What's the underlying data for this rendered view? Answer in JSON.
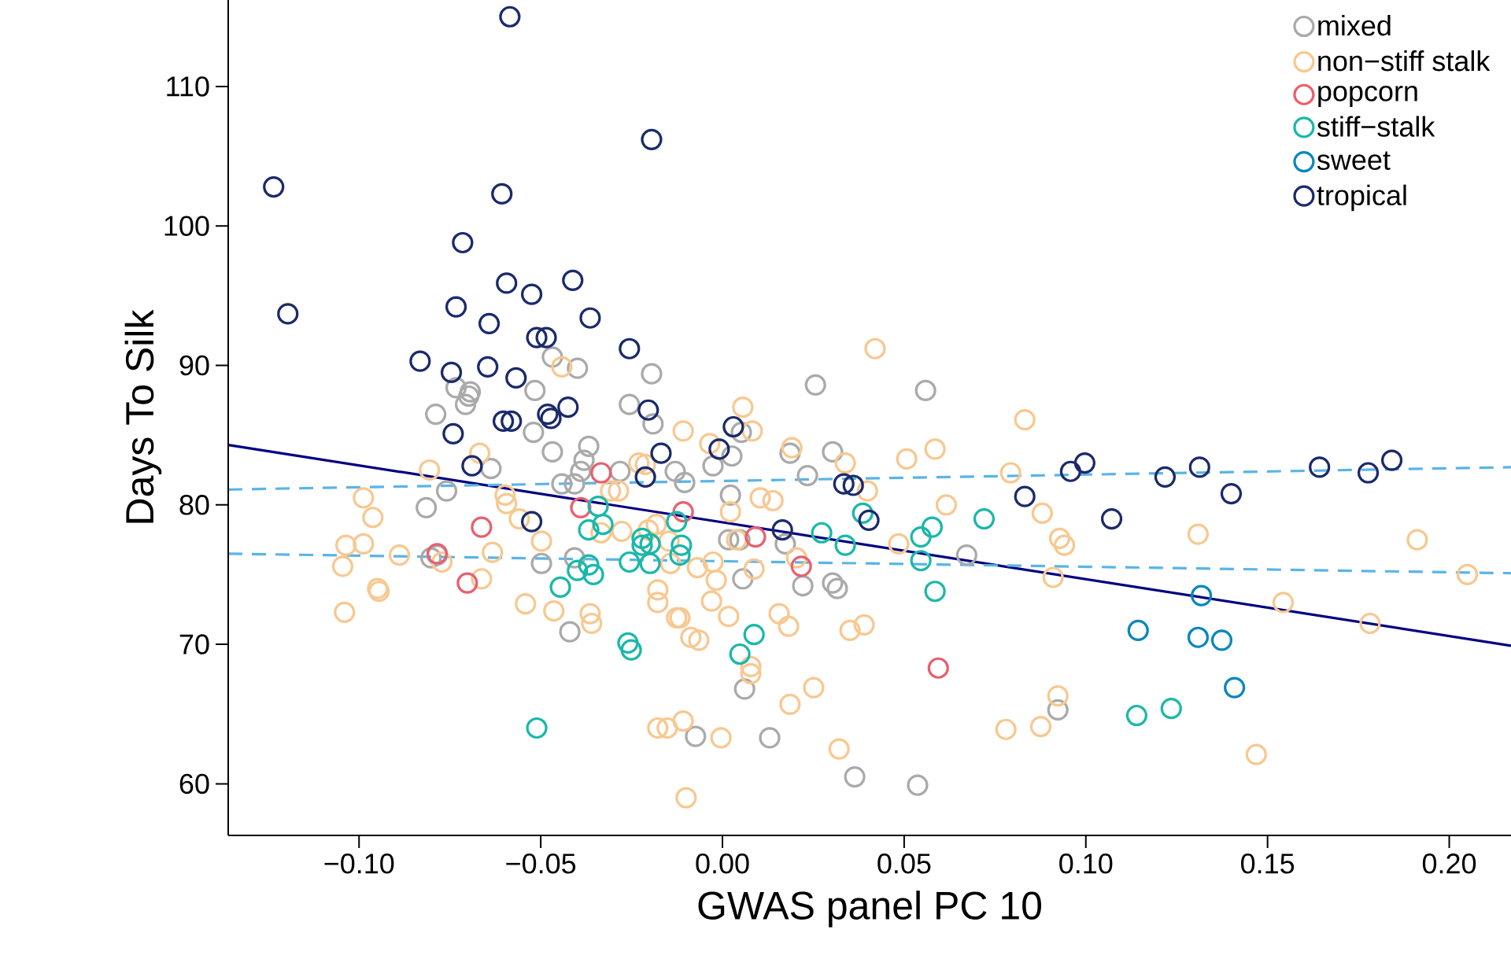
{
  "chart_data": {
    "type": "scatter",
    "xlabel": "GWAS panel PC 10",
    "ylabel": "Days To Silk",
    "xlim": [
      -0.136,
      0.217
    ],
    "ylim": [
      56.3,
      116.2
    ],
    "xticks": [
      {
        "value": -0.1,
        "label": "−0.10"
      },
      {
        "value": -0.05,
        "label": "−0.05"
      },
      {
        "value": 0,
        "label": "0.00"
      },
      {
        "value": 0.05,
        "label": "0.05"
      },
      {
        "value": 0.1,
        "label": "0.10"
      },
      {
        "value": 0.15,
        "label": "0.15"
      },
      {
        "value": 0.2,
        "label": "0.20"
      }
    ],
    "yticks": [
      60,
      70,
      80,
      90,
      100,
      110
    ],
    "grid": false,
    "legend": "top right",
    "marker": "circle",
    "series": [
      {
        "name": "mixed",
        "color": "#aaaaaa",
        "x": [
          -0.0468,
          -0.0399,
          -0.0195,
          -0.0733,
          -0.0694,
          -0.0516,
          -0.0698,
          -0.0707,
          -0.0789,
          -0.052,
          -0.0468,
          -0.0368,
          -0.0381,
          -0.039,
          -0.0637,
          -0.0442,
          -0.0407,
          -0.0282,
          -0.0256,
          -0.0191,
          -0.0759,
          -0.0815,
          -0.0802,
          -0.0785,
          -0.0498,
          -0.0407,
          -0.042,
          0.0256,
          0.0559,
          -0.013,
          -0.0104,
          0.0026,
          -0.0026,
          0.0052,
          0.0186,
          0.0303,
          0.0234,
          0.0022,
          0.0017,
          0.0048,
          0.0173,
          0.0056,
          0.0221,
          0.0303,
          0.0316,
          0.0672,
          0.0061,
          -0.0074,
          0.013,
          0.0364,
          0.0537,
          0.0923
        ],
        "values": [
          90.6,
          89.8,
          89.4,
          88.4,
          88.1,
          88.2,
          87.8,
          87.2,
          86.5,
          85.2,
          83.8,
          84.2,
          83.2,
          82.4,
          82.6,
          81.5,
          81.5,
          82.4,
          87.2,
          85.8,
          81.0,
          79.8,
          76.2,
          76.4,
          75.8,
          76.2,
          70.9,
          88.6,
          88.2,
          82.4,
          81.6,
          83.5,
          82.8,
          85.2,
          83.7,
          83.8,
          82.1,
          80.7,
          77.5,
          77.5,
          77.2,
          74.7,
          74.2,
          74.4,
          74.0,
          76.4,
          66.8,
          63.4,
          63.3,
          60.5,
          59.9,
          65.3
        ]
      },
      {
        "name": "non−stiff stalk",
        "color": "#f8c890",
        "x": [
          -0.0442,
          0.042,
          -0.0668,
          -0.0806,
          -0.0988,
          -0.0962,
          -0.0598,
          -0.0594,
          -0.0559,
          -0.0498,
          -0.1036,
          -0.0988,
          -0.1045,
          -0.0889,
          -0.0633,
          -0.0772,
          -0.0663,
          -0.0949,
          -0.0945,
          -0.104,
          -0.0542,
          -0.0464,
          -0.0364,
          -0.036,
          -0.0308,
          -0.0286,
          -0.023,
          -0.0334,
          -0.0277,
          -0.0204,
          -0.0178,
          -0.0178,
          -0.0178,
          0.0056,
          -0.0108,
          0.0082,
          -0.0035,
          0.0191,
          0.0338,
          0.0399,
          0.0104,
          0.0139,
          0.0022,
          -0.0212,
          -0.0182,
          -0.0147,
          -0.0143,
          -0.0069,
          -0.0026,
          0.0039,
          0.0087,
          -0.0017,
          -0.003,
          0.0017,
          -0.0126,
          -0.0117,
          -0.0087,
          -0.0065,
          0.0156,
          0.0182,
          0.0204,
          0.0507,
          0.0585,
          0.0832,
          0.0616,
          0.0485,
          0.0351,
          0.039,
          0.0078,
          0.0078,
          0.0251,
          0.0186,
          -0.0152,
          -0.0108,
          -0.0004,
          0.0321,
          -0.01,
          0.0793,
          0.088,
          0.0928,
          0.0941,
          0.091,
          0.0923,
          0.078,
          0.0876,
          0.1309,
          0.1912,
          0.205,
          0.1543,
          0.1782,
          0.1469
        ],
        "values": [
          89.9,
          91.2,
          83.7,
          82.5,
          80.5,
          79.1,
          80.7,
          80.1,
          79.0,
          77.4,
          77.1,
          77.2,
          75.6,
          76.4,
          76.6,
          75.9,
          74.7,
          74.0,
          73.8,
          72.3,
          72.9,
          72.4,
          72.2,
          71.5,
          81.0,
          81.0,
          83.0,
          78.0,
          78.1,
          78.2,
          73.9,
          73.0,
          64.0,
          87.0,
          85.3,
          85.3,
          84.4,
          84.1,
          83.0,
          81.0,
          80.5,
          80.3,
          79.5,
          82.9,
          78.6,
          77.4,
          75.8,
          75.5,
          75.9,
          77.5,
          75.4,
          74.6,
          73.1,
          72.0,
          71.9,
          71.9,
          70.5,
          70.3,
          72.2,
          71.3,
          76.2,
          83.3,
          84.0,
          86.1,
          80.0,
          77.2,
          71.0,
          71.4,
          68.4,
          67.9,
          66.9,
          65.7,
          64.0,
          64.5,
          63.3,
          62.5,
          59.0,
          82.3,
          79.4,
          77.6,
          77.1,
          74.8,
          66.3,
          63.9,
          64.1,
          77.9,
          77.5,
          75.0,
          73.0,
          71.5,
          62.1
        ]
      },
      {
        "name": "popcorn",
        "color": "#e8606f",
        "x": [
          -0.0334,
          -0.039,
          -0.0663,
          -0.0785,
          -0.0702,
          -0.0108,
          0.0091,
          0.0217,
          0.0594
        ],
        "values": [
          82.3,
          79.8,
          78.4,
          76.5,
          74.4,
          79.5,
          77.7,
          75.6,
          68.3
        ]
      },
      {
        "name": "stiff−stalk",
        "color": "#1ab8a9",
        "x": [
          -0.0342,
          -0.0368,
          -0.0329,
          -0.0221,
          -0.0221,
          -0.0256,
          -0.0399,
          -0.0368,
          -0.0355,
          -0.0446,
          -0.026,
          -0.0251,
          -0.0511,
          -0.0126,
          -0.0113,
          -0.0117,
          -0.0199,
          -0.0199,
          0.0386,
          0.0273,
          0.0338,
          0.0546,
          0.0577,
          0.0546,
          0.0585,
          0.072,
          0.0087,
          0.0048,
          0.114,
          0.1235
        ],
        "values": [
          79.9,
          78.2,
          78.6,
          77.6,
          77.1,
          75.9,
          75.3,
          75.7,
          75.0,
          74.1,
          70.1,
          69.6,
          64.0,
          78.8,
          77.1,
          76.4,
          77.2,
          75.8,
          79.4,
          78.0,
          77.1,
          77.7,
          78.4,
          76.0,
          73.8,
          79.0,
          70.7,
          69.3,
          64.9,
          65.4
        ]
      },
      {
        "name": "sweet",
        "color": "#0a86be",
        "x": [
          0.1318,
          0.1144,
          0.1309,
          0.1374,
          0.1409
        ],
        "values": [
          73.5,
          71.0,
          70.5,
          70.3,
          66.9
        ]
      },
      {
        "name": "tropical",
        "color": "#1b2a6b",
        "x": [
          -0.0585,
          -0.0195,
          -0.1235,
          -0.0607,
          -0.0715,
          -0.0594,
          -0.0525,
          -0.0412,
          -0.1196,
          -0.0733,
          -0.0642,
          -0.0364,
          -0.0511,
          -0.0485,
          -0.0256,
          -0.0832,
          -0.0746,
          -0.0646,
          -0.0568,
          -0.0204,
          -0.0603,
          -0.0581,
          -0.0481,
          -0.0472,
          -0.0425,
          -0.0741,
          -0.0689,
          -0.0212,
          -0.0525,
          -0.0169,
          0.003,
          -0.0009,
          0.0334,
          0.036,
          0.0165,
          0.0403,
          0.0832,
          0.0958,
          0.0997,
          0.1218,
          0.1313,
          0.14,
          0.1071,
          0.1643,
          0.1777,
          0.1842
        ],
        "values": [
          115.0,
          106.2,
          102.8,
          102.3,
          98.8,
          95.9,
          95.1,
          96.1,
          93.7,
          94.2,
          93.0,
          93.4,
          92.0,
          92.0,
          91.2,
          90.3,
          89.5,
          89.9,
          89.1,
          86.8,
          86.0,
          86.0,
          86.5,
          86.2,
          87.0,
          85.1,
          82.8,
          82.0,
          78.8,
          83.7,
          85.6,
          84.0,
          81.5,
          81.4,
          78.2,
          78.9,
          80.6,
          82.4,
          83.0,
          82.0,
          82.7,
          80.8,
          79.0,
          82.7,
          82.3,
          83.2
        ]
      },
      {
        "type": "line",
        "color": "#000080",
        "line_style": "solid",
        "marker": "none",
        "x": [
          -0.136,
          0.217
        ],
        "values": [
          84.3,
          69.9
        ]
      },
      {
        "type": "line",
        "color": "#5ab4e5",
        "line_style": "dashed",
        "marker": "none",
        "x": [
          -0.136,
          0.217
        ],
        "values": [
          81.1,
          82.7
        ]
      },
      {
        "type": "line",
        "color": "#5ab4e5",
        "line_style": "dashed",
        "marker": "none",
        "x": [
          -0.136,
          0.217
        ],
        "values": [
          76.5,
          75.1
        ]
      }
    ]
  }
}
